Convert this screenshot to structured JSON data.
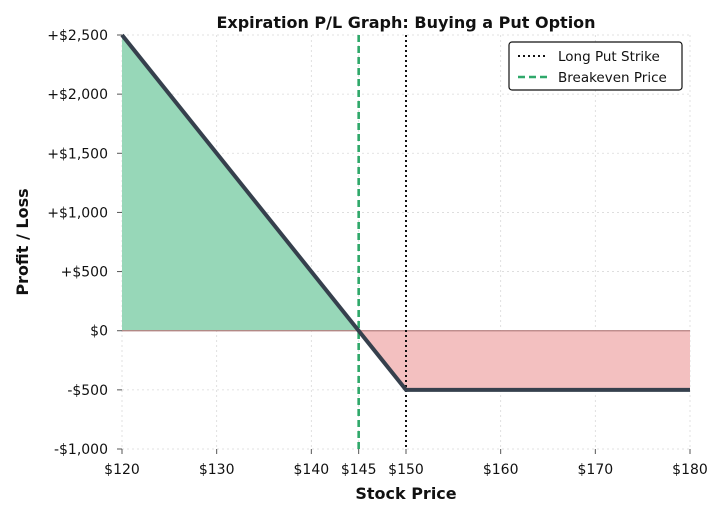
{
  "chart_data": {
    "type": "line",
    "title": "Expiration P/L Graph: Buying a Put Option",
    "xlabel": "Stock Price",
    "ylabel": "Profit / Loss",
    "xlim": [
      120,
      180
    ],
    "ylim": [
      -1000,
      2500
    ],
    "grid": true,
    "legend_position": "top-right",
    "x_ticks": [
      {
        "value": 120,
        "label": "$120"
      },
      {
        "value": 130,
        "label": "$130"
      },
      {
        "value": 140,
        "label": "$140"
      },
      {
        "value": 145,
        "label": "$145"
      },
      {
        "value": 150,
        "label": "$150"
      },
      {
        "value": 160,
        "label": "$160"
      },
      {
        "value": 170,
        "label": "$170"
      },
      {
        "value": 180,
        "label": "$180"
      }
    ],
    "y_ticks": [
      {
        "value": 2500,
        "label": "+$2,500"
      },
      {
        "value": 2000,
        "label": "+$2,000"
      },
      {
        "value": 1500,
        "label": "+$1,500"
      },
      {
        "value": 1000,
        "label": "+$1,000"
      },
      {
        "value": 500,
        "label": "+$500"
      },
      {
        "value": 0,
        "label": "$0"
      },
      {
        "value": -500,
        "label": "-$500"
      },
      {
        "value": -1000,
        "label": "-$1,000"
      }
    ],
    "series": [
      {
        "x": [
          120,
          145,
          150,
          180
        ],
        "y": [
          2500,
          0,
          -500,
          -500
        ],
        "color": "#36404d"
      }
    ],
    "reference_lines": [
      {
        "name": "Long Put Strike",
        "x": 150,
        "style": "dotted",
        "color": "#111111"
      },
      {
        "name": "Breakeven Price",
        "x": 145,
        "style": "dashed",
        "color": "#2fa86a"
      }
    ],
    "profit_fill_color": "#97d7b8",
    "loss_fill_color": "#f3c0c0",
    "zero_line_color": "#b57f7f"
  }
}
